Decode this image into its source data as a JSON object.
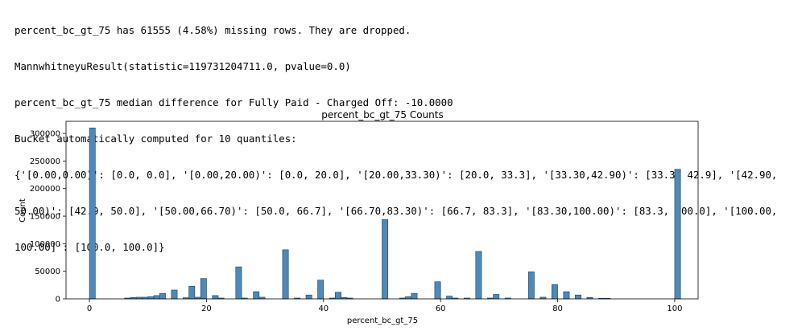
{
  "console": {
    "lines": [
      "percent_bc_gt_75 has 61555 (4.58%) missing rows. They are dropped.",
      "MannwhitneyuResult(statistic=119731204711.0, pvalue=0.0)",
      "percent_bc_gt_75 median difference for Fully Paid - Charged Off: -10.0000",
      "Bucket automatically computed for 10 quantiles:",
      "{'[0.00,0.00)': [0.0, 0.0], '[0.00,20.00)': [0.0, 20.0], '[20.00,33.30)': [20.0, 33.3], '[33.30,42.90)': [33.3, 42.9], '[42.90,",
      "50.00)': [42.9, 50.0], '[50.00,66.70)': [50.0, 66.7], '[66.70,83.30)': [66.7, 83.3], '[83.30,100.00)': [83.3, 100.0], '[100.00,",
      "100.00]': [100.0, 100.0]}"
    ]
  },
  "colors": {
    "bar_fill": "#4e89b8",
    "bar_edge": "#1f3f5a",
    "axes": "#000000"
  },
  "chart_data": {
    "type": "bar",
    "title": "percent_bc_gt_75 Counts",
    "xlabel": "percent_bc_gt_75",
    "ylabel": "Count",
    "xlim": [
      -4,
      104
    ],
    "ylim": [
      0,
      322000
    ],
    "xticks": [
      0,
      20,
      40,
      60,
      80,
      100
    ],
    "yticks": [
      0,
      50000,
      100000,
      150000,
      200000,
      250000,
      300000
    ],
    "bin_width": 1,
    "bars": [
      {
        "x": 0.5,
        "value": 310000
      },
      {
        "x": 6.5,
        "value": 1500
      },
      {
        "x": 7.5,
        "value": 2500
      },
      {
        "x": 8.5,
        "value": 3000
      },
      {
        "x": 9.5,
        "value": 3000
      },
      {
        "x": 10.5,
        "value": 4000
      },
      {
        "x": 11.5,
        "value": 6000
      },
      {
        "x": 12.5,
        "value": 10000
      },
      {
        "x": 14.5,
        "value": 16000
      },
      {
        "x": 16.5,
        "value": 2000
      },
      {
        "x": 17.5,
        "value": 23000
      },
      {
        "x": 18.5,
        "value": 3000
      },
      {
        "x": 19.5,
        "value": 37000
      },
      {
        "x": 21.5,
        "value": 6000
      },
      {
        "x": 22.5,
        "value": 1500
      },
      {
        "x": 25.5,
        "value": 58000
      },
      {
        "x": 26.5,
        "value": 1500
      },
      {
        "x": 28.5,
        "value": 13000
      },
      {
        "x": 29.5,
        "value": 3000
      },
      {
        "x": 33.5,
        "value": 89000
      },
      {
        "x": 35.5,
        "value": 1500
      },
      {
        "x": 37.5,
        "value": 7000
      },
      {
        "x": 39.5,
        "value": 34000
      },
      {
        "x": 41.5,
        "value": 1500
      },
      {
        "x": 42.5,
        "value": 12000
      },
      {
        "x": 43.5,
        "value": 2500
      },
      {
        "x": 44.5,
        "value": 1500
      },
      {
        "x": 50.5,
        "value": 144000
      },
      {
        "x": 53.5,
        "value": 1500
      },
      {
        "x": 54.5,
        "value": 4000
      },
      {
        "x": 55.5,
        "value": 10000
      },
      {
        "x": 59.5,
        "value": 31000
      },
      {
        "x": 61.5,
        "value": 5000
      },
      {
        "x": 62.5,
        "value": 1500
      },
      {
        "x": 64.5,
        "value": 1500
      },
      {
        "x": 66.5,
        "value": 86000
      },
      {
        "x": 68.5,
        "value": 1500
      },
      {
        "x": 69.5,
        "value": 8000
      },
      {
        "x": 71.5,
        "value": 1500
      },
      {
        "x": 75.5,
        "value": 49000
      },
      {
        "x": 77.5,
        "value": 3000
      },
      {
        "x": 79.5,
        "value": 26000
      },
      {
        "x": 81.5,
        "value": 13000
      },
      {
        "x": 83.5,
        "value": 7000
      },
      {
        "x": 85.5,
        "value": 2500
      },
      {
        "x": 87.5,
        "value": 1000
      },
      {
        "x": 88.5,
        "value": 1000
      },
      {
        "x": 100.5,
        "value": 235000
      }
    ]
  }
}
